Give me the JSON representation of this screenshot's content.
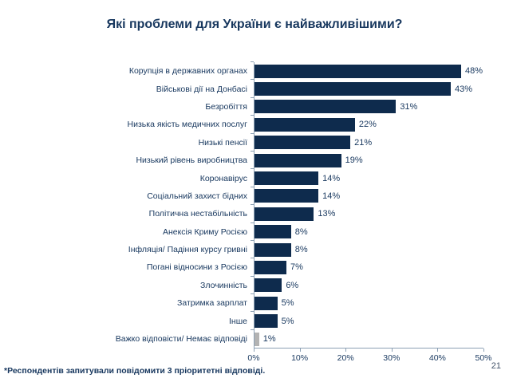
{
  "title": "Які проблеми для України є найважливішими?",
  "footnote": "*Респондентів запитували повідомити 3 пріоритетні відповіді.",
  "page_number": "21",
  "colors": {
    "bar": "#0E2B4D",
    "bar_muted": "#B3B3B3",
    "text": "#17375E",
    "axis": "#8CA0B4"
  },
  "chart_data": {
    "type": "bar",
    "orientation": "horizontal",
    "title": "Які проблеми для України є найважливішими?",
    "categories": [
      "Корупція в державних органах",
      "Військові дії на Донбасі",
      "Безробіття",
      "Низька якість медичних послуг",
      "Низькі пенсії",
      "Низький рівень виробництва",
      "Коронавірус",
      "Соціальний захист бідних",
      "Політична нестабільність",
      "Анексія Криму Росією",
      "Інфляція/ Падіння курсу гривні",
      "Погані відносини з Росією",
      "Злочинність",
      "Затримка зарплат",
      "Інше",
      "Важко відповісти/ Немає відповіді"
    ],
    "values": [
      48,
      43,
      31,
      22,
      21,
      19,
      14,
      14,
      13,
      8,
      8,
      7,
      6,
      5,
      5,
      1
    ],
    "value_suffix": "%",
    "muted_categories": [
      "Важко відповісти/ Немає відповіді"
    ],
    "xlim": [
      0,
      50
    ],
    "x_ticks": [
      "0%",
      "10%",
      "20%",
      "30%",
      "40%",
      "50%"
    ],
    "grid": false,
    "legend": false,
    "data_labels": true
  }
}
